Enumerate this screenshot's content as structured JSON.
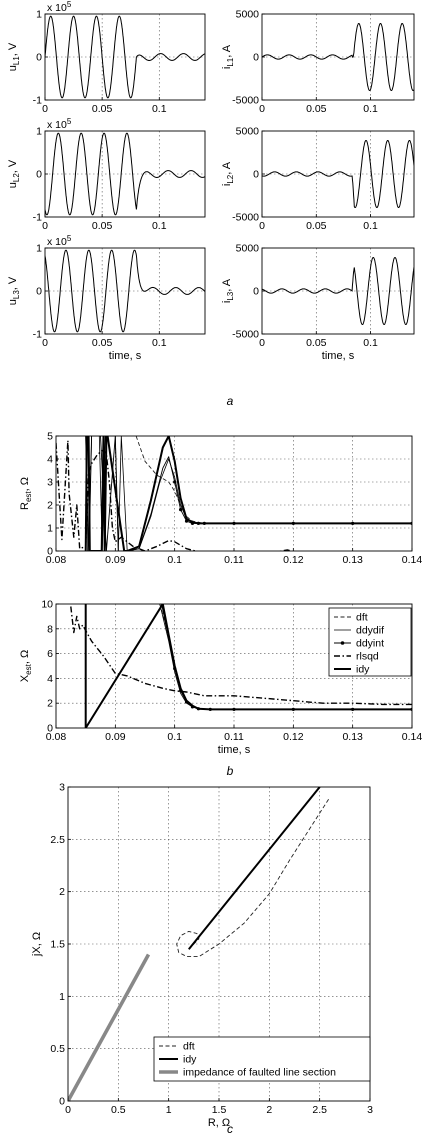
{
  "captions": [
    "a",
    "b",
    "c"
  ],
  "chart_data": [
    {
      "type": "line",
      "id": "uL1",
      "ylabel": "u",
      "ylabel_sub": "L1",
      "ylabel_unit": ", V",
      "exponent": "x 10",
      "exponent_power": "5",
      "xlim": [
        0,
        0.14
      ],
      "ylim": [
        -1,
        1
      ],
      "xticks": [
        0,
        0.05,
        0.1
      ],
      "xtick_labels": [
        "0",
        "0.05",
        "0.1"
      ],
      "yticks": [
        -1,
        0,
        1
      ],
      "ytick_labels": [
        "-1",
        "0",
        "1"
      ],
      "xlabel": "",
      "grid": true,
      "signal": {
        "kind": "voltage",
        "f": 50,
        "amp_pre": 0.95,
        "amp_post": 0.08,
        "t_fault": 0.08,
        "phase": 0
      }
    },
    {
      "type": "line",
      "id": "iL1",
      "ylabel": "i",
      "ylabel_sub": "L1",
      "ylabel_unit": ", A",
      "xlim": [
        0,
        0.14
      ],
      "ylim": [
        -5000,
        5000
      ],
      "xticks": [
        0,
        0.05,
        0.1
      ],
      "xtick_labels": [
        "0",
        "0.05",
        "0.1"
      ],
      "yticks": [
        -5000,
        0,
        5000
      ],
      "ytick_labels": [
        "-5000",
        "0",
        "5000"
      ],
      "xlabel": "",
      "grid": true,
      "signal": {
        "kind": "current",
        "f": 50,
        "amp_pre": 250,
        "amp_post": 3900,
        "t_fault": 0.083,
        "phase": 0
      }
    },
    {
      "type": "line",
      "id": "uL2",
      "ylabel": "u",
      "ylabel_sub": "L2",
      "ylabel_unit": ", V",
      "exponent": "x 10",
      "exponent_power": "5",
      "xlim": [
        0,
        0.14
      ],
      "ylim": [
        -1,
        1
      ],
      "xticks": [
        0,
        0.05,
        0.1
      ],
      "xtick_labels": [
        "0",
        "0.05",
        "0.1"
      ],
      "yticks": [
        -1,
        0,
        1
      ],
      "ytick_labels": [
        "-1",
        "0",
        "1"
      ],
      "xlabel": "",
      "grid": true,
      "signal": {
        "kind": "voltage",
        "f": 50,
        "amp_pre": 0.95,
        "amp_post": 0.08,
        "t_fault": 0.08,
        "phase": -2.094
      }
    },
    {
      "type": "line",
      "id": "iL2",
      "ylabel": "i",
      "ylabel_sub": "L2",
      "ylabel_unit": ", A",
      "xlim": [
        0,
        0.14
      ],
      "ylim": [
        -5000,
        5000
      ],
      "xticks": [
        0,
        0.05,
        0.1
      ],
      "xtick_labels": [
        "0",
        "0.05",
        "0.1"
      ],
      "yticks": [
        -5000,
        0,
        5000
      ],
      "ytick_labels": [
        "-5000",
        "0",
        "5000"
      ],
      "xlabel": "",
      "grid": true,
      "signal": {
        "kind": "current",
        "f": 50,
        "amp_pre": 250,
        "amp_post": 3900,
        "t_fault": 0.083,
        "phase": -2.094
      }
    },
    {
      "type": "line",
      "id": "uL3",
      "ylabel": "u",
      "ylabel_sub": "L3",
      "ylabel_unit": ", V",
      "exponent": "x 10",
      "exponent_power": "5",
      "xlim": [
        0,
        0.14
      ],
      "ylim": [
        -1,
        1
      ],
      "xticks": [
        0,
        0.05,
        0.1
      ],
      "xtick_labels": [
        "0",
        "0.05",
        "0.1"
      ],
      "yticks": [
        -1,
        0,
        1
      ],
      "ytick_labels": [
        "-1",
        "0",
        "1"
      ],
      "xlabel": "time, s",
      "grid": true,
      "signal": {
        "kind": "voltage",
        "f": 50,
        "amp_pre": 0.95,
        "amp_post": 0.08,
        "t_fault": 0.08,
        "phase": 2.094
      }
    },
    {
      "type": "line",
      "id": "iL3",
      "ylabel": "i",
      "ylabel_sub": "L3",
      "ylabel_unit": ", A",
      "xlim": [
        0,
        0.14
      ],
      "ylim": [
        -5000,
        5000
      ],
      "xticks": [
        0,
        0.05,
        0.1
      ],
      "xtick_labels": [
        "0",
        "0.05",
        "0.1"
      ],
      "yticks": [
        -5000,
        0,
        5000
      ],
      "ytick_labels": [
        "-5000",
        "0",
        "5000"
      ],
      "xlabel": "time, s",
      "grid": true,
      "signal": {
        "kind": "current",
        "f": 50,
        "amp_pre": 250,
        "amp_post": 3900,
        "t_fault": 0.083,
        "phase": 2.094
      }
    },
    {
      "type": "line",
      "id": "Rest",
      "ylabel": "R",
      "ylabel_sub": "est",
      "ylabel_unit": ", Ω",
      "xlim": [
        0.08,
        0.14
      ],
      "ylim": [
        0,
        5
      ],
      "xticks": [
        0.08,
        0.09,
        0.1,
        0.11,
        0.12,
        0.13,
        0.14
      ],
      "xtick_labels": [
        "0.08",
        "0.09",
        "0.1",
        "0.11",
        "0.12",
        "0.13",
        "0.14"
      ],
      "yticks": [
        0,
        1,
        2,
        3,
        4,
        5
      ],
      "ytick_labels": [
        "0",
        "1",
        "2",
        "3",
        "4",
        "5"
      ],
      "xlabel": "",
      "grid": true,
      "series": [
        {
          "name": "dft",
          "style": "dashed",
          "x": [
            0.0935,
            0.095,
            0.097,
            0.099,
            0.1,
            0.101,
            0.102,
            0.103,
            0.104,
            0.105,
            0.11,
            0.12,
            0.13,
            0.14
          ],
          "y": [
            5,
            3.9,
            3.3,
            3.0,
            2.6,
            2.0,
            1.5,
            1.3,
            1.25,
            1.2,
            1.2,
            1.2,
            1.2,
            1.2
          ]
        },
        {
          "name": "ddydif",
          "style": "thin",
          "x": [
            0.085,
            0.0853,
            0.0856,
            0.086,
            0.0873,
            0.0878,
            0.0883,
            0.09,
            0.0905,
            0.091,
            0.092,
            0.094,
            0.096,
            0.0975,
            0.099,
            0.1,
            0.101,
            0.102,
            0.103,
            0.104,
            0.105,
            0.11,
            0.12,
            0.13,
            0.14
          ],
          "y": [
            5,
            0,
            0,
            5,
            5,
            0,
            5,
            5,
            0,
            5,
            0,
            0.1,
            1.5,
            3.0,
            4.0,
            3.2,
            2.0,
            1.4,
            1.25,
            1.2,
            1.2,
            1.2,
            1.2,
            1.2,
            1.2
          ]
        },
        {
          "name": "ddyint",
          "style": "dots",
          "x": [
            0.085,
            0.0855,
            0.086,
            0.0875,
            0.0885,
            0.09,
            0.0905,
            0.092,
            0.094,
            0.096,
            0.098,
            0.099,
            0.1,
            0.101,
            0.102,
            0.103,
            0.104,
            0.105,
            0.11,
            0.12,
            0.13,
            0.14
          ],
          "y": [
            5,
            0,
            5,
            5,
            0,
            5,
            0,
            0,
            0.1,
            1.6,
            3.6,
            4.1,
            3.0,
            1.8,
            1.3,
            1.2,
            1.2,
            1.2,
            1.2,
            1.2,
            1.2,
            1.2
          ]
        },
        {
          "name": "rlsqd",
          "style": "dashdot",
          "x": [
            0.08,
            0.081,
            0.082,
            0.0822,
            0.083,
            0.0835,
            0.084,
            0.085,
            0.0855,
            0.086,
            0.087,
            0.088,
            0.0885,
            0.089,
            0.0895,
            0.09,
            0.091,
            0.093,
            0.095,
            0.097,
            0.099,
            0.1,
            0.102,
            0.105,
            0.11,
            0.113,
            0.115,
            0.119,
            0.123,
            0.128,
            0.132,
            0.137,
            0.14
          ],
          "y": [
            4.7,
            0.5,
            4.8,
            2.5,
            0.6,
            2.0,
            0.1,
            0.2,
            3.4,
            3.8,
            4.2,
            4.4,
            4.2,
            3.0,
            1.0,
            0.4,
            0.6,
            0.2,
            0.0,
            0.2,
            0.45,
            0.4,
            0.1,
            -0.1,
            -0.1,
            -0.05,
            -0.15,
            0.05,
            -0.25,
            -0.05,
            -0.25,
            -0.1,
            -0.15
          ]
        },
        {
          "name": "idy",
          "style": "thick",
          "x": [
            0.085,
            0.0852,
            0.0855,
            0.0857,
            0.0877,
            0.088,
            0.0882,
            0.0885,
            0.0887,
            0.0915,
            0.092,
            0.094,
            0.096,
            0.098,
            0.099,
            0.1,
            0.101,
            0.102,
            0.103,
            0.104,
            0.105,
            0.11,
            0.12,
            0.13,
            0.14
          ],
          "y": [
            0,
            5,
            5,
            0,
            0,
            5,
            0,
            5,
            5,
            0,
            0,
            0.2,
            2.2,
            4.5,
            5.0,
            3.9,
            2.3,
            1.4,
            1.25,
            1.2,
            1.2,
            1.2,
            1.2,
            1.2,
            1.2
          ]
        }
      ]
    },
    {
      "type": "line",
      "id": "Xest",
      "ylabel": "X",
      "ylabel_sub": "est",
      "ylabel_unit": ", Ω",
      "xlim": [
        0.08,
        0.14
      ],
      "ylim": [
        0,
        10
      ],
      "xticks": [
        0.08,
        0.09,
        0.1,
        0.11,
        0.12,
        0.13,
        0.14
      ],
      "xtick_labels": [
        "0.08",
        "0.09",
        "0.1",
        "0.11",
        "0.12",
        "0.13",
        "0.14"
      ],
      "yticks": [
        0,
        2,
        4,
        6,
        8,
        10
      ],
      "ytick_labels": [
        "0",
        "2",
        "4",
        "6",
        "8",
        "10"
      ],
      "xlabel": "time, s",
      "grid": true,
      "legend_position": "top-right",
      "series": [
        {
          "name": "dft",
          "style": "dashed",
          "x": [
            0.0975,
            0.099,
            0.1,
            0.101,
            0.102,
            0.103,
            0.104,
            0.106,
            0.11,
            0.12,
            0.13,
            0.14
          ],
          "y": [
            10,
            7.5,
            5.0,
            3.2,
            2.2,
            1.8,
            1.6,
            1.5,
            1.5,
            1.5,
            1.5,
            1.5
          ]
        },
        {
          "name": "ddydif",
          "style": "thin",
          "x": [
            0.0975,
            0.099,
            0.1,
            0.101,
            0.102,
            0.103,
            0.104,
            0.106,
            0.11,
            0.12,
            0.13,
            0.14
          ],
          "y": [
            10,
            7.0,
            4.5,
            2.8,
            2.0,
            1.7,
            1.55,
            1.5,
            1.5,
            1.5,
            1.5,
            1.5
          ]
        },
        {
          "name": "ddyint",
          "style": "dots",
          "x": [
            0.0978,
            0.099,
            0.1,
            0.101,
            0.102,
            0.103,
            0.104,
            0.106,
            0.11,
            0.12,
            0.13,
            0.14
          ],
          "y": [
            10,
            7.2,
            4.8,
            3.0,
            2.1,
            1.7,
            1.55,
            1.5,
            1.5,
            1.5,
            1.5,
            1.5
          ]
        },
        {
          "name": "rlsqd",
          "style": "dashdot",
          "x": [
            0.0825,
            0.083,
            0.0835,
            0.084,
            0.0845,
            0.086,
            0.088,
            0.09,
            0.092,
            0.095,
            0.098,
            0.1,
            0.102,
            0.105,
            0.11,
            0.115,
            0.12,
            0.125,
            0.13,
            0.135,
            0.14
          ],
          "y": [
            9.8,
            7.7,
            9.0,
            8.0,
            8.3,
            7.0,
            5.8,
            4.4,
            4.2,
            3.6,
            3.2,
            3.0,
            2.9,
            2.6,
            2.6,
            2.4,
            2.2,
            2.0,
            2.0,
            1.9,
            1.9
          ]
        },
        {
          "name": "idy",
          "style": "thick",
          "x": [
            0.085,
            0.085,
            0.085,
            0.098,
            0.099,
            0.1,
            0.101,
            0.102,
            0.103,
            0.104,
            0.106,
            0.11,
            0.12,
            0.13,
            0.14
          ],
          "y": [
            0,
            10,
            0,
            10,
            7.5,
            5.0,
            3.2,
            2.2,
            1.8,
            1.55,
            1.5,
            1.5,
            1.5,
            1.5,
            1.5
          ]
        }
      ]
    },
    {
      "type": "line",
      "id": "RX",
      "ylabel": "jX, Ω",
      "xlabel": "R, Ω",
      "xlim": [
        0,
        3
      ],
      "ylim": [
        0,
        3
      ],
      "xticks": [
        0,
        0.5,
        1,
        1.5,
        2,
        2.5,
        3
      ],
      "xtick_labels": [
        "0",
        "0.5",
        "1",
        "1.5",
        "2",
        "2.5",
        "3"
      ],
      "yticks": [
        0,
        0.5,
        1,
        1.5,
        2,
        2.5,
        3
      ],
      "ytick_labels": [
        "0",
        "0.5",
        "1",
        "1.5",
        "2",
        "2.5",
        "3"
      ],
      "grid": true,
      "legend_position": "bottom-right",
      "series": [
        {
          "name": "dft",
          "style": "dashed",
          "x": [
            1.2,
            1.25,
            1.3,
            1.28,
            1.2,
            1.12,
            1.08,
            1.1,
            1.18,
            1.3,
            1.5,
            1.75,
            2.0,
            2.2,
            2.4,
            2.6
          ],
          "y": [
            1.45,
            1.5,
            1.55,
            1.6,
            1.62,
            1.58,
            1.5,
            1.42,
            1.38,
            1.38,
            1.5,
            1.7,
            1.98,
            2.3,
            2.6,
            2.9
          ]
        },
        {
          "name": "idy",
          "style": "thick",
          "x": [
            1.2,
            2.5
          ],
          "y": [
            1.45,
            3.0
          ]
        },
        {
          "name": "impedance of faulted line section",
          "style": "gray",
          "x": [
            0,
            0.8
          ],
          "y": [
            0,
            1.4
          ]
        }
      ]
    }
  ]
}
